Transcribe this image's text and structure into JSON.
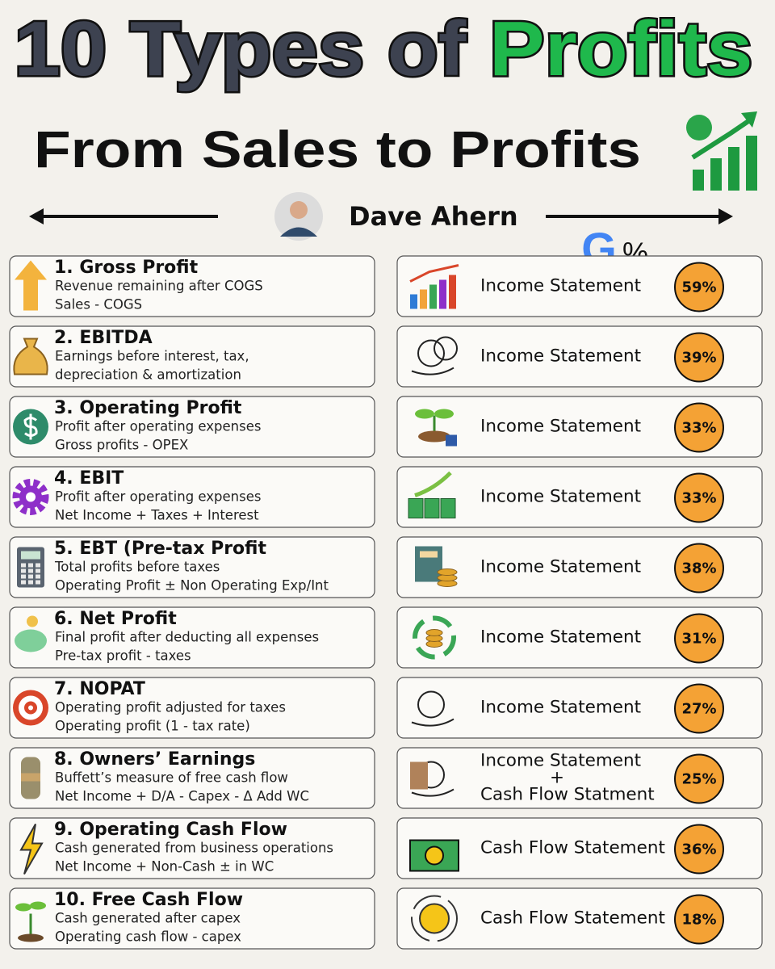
{
  "header": {
    "title_main": "10 Types of",
    "title_highlight": "Profits",
    "subtitle": "From Sales to Profits",
    "author": "Dave Ahern"
  },
  "logo": {
    "letter": "G",
    "symbol": "%"
  },
  "items": [
    {
      "title": "1. Gross Profit",
      "lines": [
        "Revenue remaining after COGS",
        "Sales - COGS"
      ],
      "source": [
        "Income Statement"
      ],
      "percent": "59%"
    },
    {
      "title": "2. EBITDA",
      "lines": [
        "Earnings before interest, tax,",
        "depreciation & amortization"
      ],
      "source": [
        "Income Statement"
      ],
      "percent": "39%"
    },
    {
      "title": "3. Operating Profit",
      "lines": [
        "Profit after operating expenses",
        "Gross profits - OPEX"
      ],
      "source": [
        "Income Statement"
      ],
      "percent": "33%"
    },
    {
      "title": "4. EBIT",
      "lines": [
        "Profit after operating expenses",
        "Net Income + Taxes + Interest"
      ],
      "source": [
        "Income Statement"
      ],
      "percent": "33%"
    },
    {
      "title": "5. EBT (Pre-tax Profit",
      "lines": [
        "Total profits before taxes",
        "Operating Profit ± Non Operating Exp/Int"
      ],
      "source": [
        "Income Statement"
      ],
      "percent": "38%"
    },
    {
      "title": "6. Net Profit",
      "lines": [
        "Final profit after deducting all expenses",
        "Pre-tax profit - taxes"
      ],
      "source": [
        "Income Statement"
      ],
      "percent": "31%"
    },
    {
      "title": "7. NOPAT",
      "lines": [
        "Operating profit adjusted for taxes",
        "Operating profit (1 - tax rate)"
      ],
      "source": [
        "Income Statement"
      ],
      "percent": "27%"
    },
    {
      "title": "8. Owners’ Earnings",
      "lines": [
        "Buffett’s measure of free cash flow",
        "Net Income + D/A - Capex - Δ Add WC"
      ],
      "source": [
        "Income Statement",
        "+",
        "Cash Flow Statment"
      ],
      "percent": "25%"
    },
    {
      "title": "9. Operating Cash Flow",
      "lines": [
        "Cash generated from business operations",
        "Net Income + Non-Cash ±  in WC"
      ],
      "source": [
        "Cash Flow Statement"
      ],
      "percent": "36%"
    },
    {
      "title": "10. Free Cash Flow",
      "lines": [
        "Cash generated after capex",
        "Operating cash flow - capex"
      ],
      "source": [
        "Cash Flow Statement"
      ],
      "percent": "18%"
    }
  ]
}
